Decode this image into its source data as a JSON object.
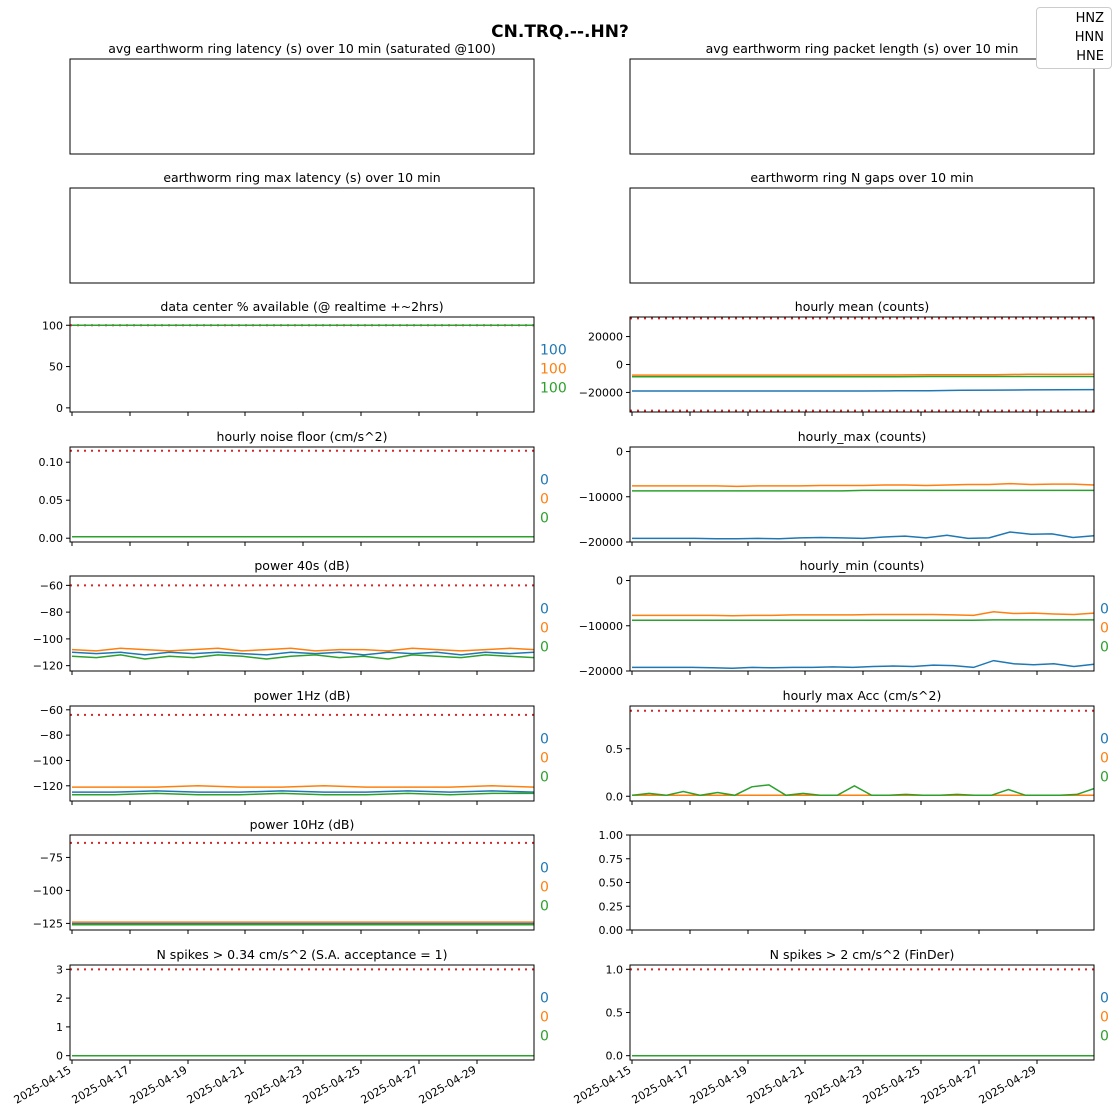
{
  "suptitle": "CN.TRQ.--.HN?",
  "legend": {
    "placement": "top-right",
    "entries": [
      "HNZ",
      "HNN",
      "HNE"
    ]
  },
  "colors": {
    "HNZ": "#1f77b4",
    "HNN": "#ff7f0e",
    "HNE": "#2ca02c",
    "threshold": "#d62728"
  },
  "x_tick_labels": [
    "2025-04-15",
    "2025-04-17",
    "2025-04-19",
    "2025-04-21",
    "2025-04-23",
    "2025-04-25",
    "2025-04-27",
    "2025-04-29"
  ],
  "chart_data": [
    {
      "id": "avg_latency",
      "type": "line",
      "title": "avg earthworm ring latency (s)   over 10 min (saturated @100)",
      "series": [],
      "side_labels": [],
      "grid": false
    },
    {
      "id": "avg_packet_len",
      "type": "line",
      "title": "avg earthworm ring packet length (s)   over 10 min",
      "series": [],
      "side_labels": [],
      "grid": false
    },
    {
      "id": "max_latency",
      "type": "line",
      "title": "earthworm ring max latency (s)   over 10 min",
      "series": [],
      "side_labels": [],
      "grid": false
    },
    {
      "id": "n_gaps",
      "type": "line",
      "title": "earthworm ring N gaps   over 10 min",
      "series": [],
      "side_labels": [],
      "grid": false
    },
    {
      "id": "availability",
      "type": "line",
      "title": "data center % available (@ realtime +~2hrs)",
      "ylim": [
        -5,
        110
      ],
      "yticks": [
        0,
        50,
        100
      ],
      "ytick_labels": [
        "0",
        "50",
        "100"
      ],
      "threshold": 100,
      "series": [
        {
          "channel": "HNZ",
          "values": [
            100,
            100,
            100
          ]
        },
        {
          "channel": "HNN",
          "values": [
            100,
            100,
            100
          ]
        },
        {
          "channel": "HNE",
          "values": [
            100,
            100,
            100
          ]
        }
      ],
      "side_labels": [
        "100",
        "100",
        "100"
      ]
    },
    {
      "id": "hourly_mean",
      "type": "line",
      "title": "hourly mean (counts)",
      "ylim": [
        -34000,
        34000
      ],
      "yticks": [
        -20000,
        0,
        20000
      ],
      "ytick_labels": [
        "−20000",
        "0",
        "20000"
      ],
      "threshold": [
        -33000,
        33000
      ],
      "series": [
        {
          "channel": "HNZ",
          "values": [
            -19000,
            -19000,
            -19000,
            -19000,
            -19000,
            -19000,
            -19000,
            -19000,
            -18800,
            -18800,
            -18500,
            -18300,
            -18200,
            -18100,
            -18000
          ]
        },
        {
          "channel": "HNN",
          "values": [
            -7600,
            -7600,
            -7600,
            -7600,
            -7600,
            -7600,
            -7600,
            -7500,
            -7500,
            -7400,
            -7400,
            -7300,
            -7000,
            -7100,
            -7000
          ]
        },
        {
          "channel": "HNE",
          "values": [
            -8700,
            -8700,
            -8700,
            -8700,
            -8700,
            -8700,
            -8700,
            -8700,
            -8700,
            -8600,
            -8600,
            -8600,
            -8600,
            -8600,
            -8600
          ]
        }
      ],
      "side_labels": []
    },
    {
      "id": "noise_floor",
      "type": "line",
      "title": "hourly noise floor (cm/s^2)",
      "ylim": [
        -0.005,
        0.12
      ],
      "yticks": [
        0,
        0.05,
        0.1
      ],
      "ytick_labels": [
        "0.00",
        "0.05",
        "0.10"
      ],
      "threshold": 0.115,
      "series": [
        {
          "channel": "HNZ",
          "values": [
            0.002,
            0.002,
            0.002,
            0.002,
            0.002
          ]
        },
        {
          "channel": "HNN",
          "values": [
            0.002,
            0.002,
            0.002,
            0.002,
            0.002
          ]
        },
        {
          "channel": "HNE",
          "values": [
            0.002,
            0.002,
            0.002,
            0.002,
            0.002
          ]
        }
      ],
      "side_labels": [
        "0",
        "0",
        "0"
      ]
    },
    {
      "id": "hourly_max",
      "type": "line",
      "title": "hourly_max (counts)",
      "ylim": [
        -20000,
        1000
      ],
      "yticks": [
        -20000,
        -10000,
        0
      ],
      "ytick_labels": [
        "−20000",
        "−10000",
        "0"
      ],
      "threshold": null,
      "series": [
        {
          "channel": "HNZ",
          "values": [
            -19200,
            -19200,
            -19200,
            -19200,
            -19300,
            -19300,
            -19200,
            -19300,
            -19100,
            -19000,
            -19100,
            -19200,
            -18900,
            -18700,
            -19100,
            -18500,
            -19200,
            -19100,
            -17800,
            -18300,
            -18200,
            -19000,
            -18600
          ]
        },
        {
          "channel": "HNN",
          "values": [
            -7600,
            -7600,
            -7600,
            -7600,
            -7600,
            -7700,
            -7600,
            -7600,
            -7600,
            -7500,
            -7500,
            -7500,
            -7400,
            -7400,
            -7500,
            -7400,
            -7300,
            -7300,
            -7100,
            -7300,
            -7200,
            -7200,
            -7400
          ]
        },
        {
          "channel": "HNE",
          "values": [
            -8700,
            -8700,
            -8700,
            -8700,
            -8700,
            -8700,
            -8700,
            -8700,
            -8700,
            -8700,
            -8700,
            -8600,
            -8600,
            -8600,
            -8600,
            -8600,
            -8600,
            -8600,
            -8600,
            -8600,
            -8600,
            -8600,
            -8600
          ]
        }
      ],
      "side_labels": []
    },
    {
      "id": "power40",
      "type": "line",
      "title": "power 40s (dB)",
      "ylim": [
        -124,
        -53
      ],
      "yticks": [
        -120,
        -100,
        -80,
        -60
      ],
      "ytick_labels": [
        "−120",
        "−100",
        "−80",
        "−60"
      ],
      "threshold": -60,
      "series": [
        {
          "channel": "HNZ",
          "values": [
            -110,
            -111,
            -110,
            -112,
            -110,
            -111,
            -110,
            -111,
            -112,
            -110,
            -111,
            -110,
            -112,
            -110,
            -111,
            -110,
            -112,
            -110,
            -111,
            -110
          ]
        },
        {
          "channel": "HNN",
          "values": [
            -108,
            -109,
            -107,
            -108,
            -109,
            -108,
            -107,
            -109,
            -108,
            -107,
            -109,
            -108,
            -108,
            -109,
            -107,
            -108,
            -109,
            -108,
            -107,
            -108
          ]
        },
        {
          "channel": "HNE",
          "values": [
            -113,
            -114,
            -112,
            -115,
            -113,
            -114,
            -112,
            -113,
            -115,
            -113,
            -112,
            -114,
            -113,
            -115,
            -112,
            -113,
            -114,
            -112,
            -113,
            -114
          ]
        }
      ],
      "side_labels": [
        "0",
        "0",
        "0"
      ]
    },
    {
      "id": "hourly_min",
      "type": "line",
      "title": "hourly_min (counts)",
      "ylim": [
        -20000,
        1000
      ],
      "yticks": [
        -20000,
        -10000,
        0
      ],
      "ytick_labels": [
        "−20000",
        "−10000",
        "0"
      ],
      "threshold": null,
      "series": [
        {
          "channel": "HNZ",
          "values": [
            -19200,
            -19200,
            -19200,
            -19200,
            -19300,
            -19400,
            -19200,
            -19300,
            -19200,
            -19200,
            -19100,
            -19200,
            -19000,
            -18900,
            -19000,
            -18700,
            -18800,
            -19200,
            -17700,
            -18400,
            -18600,
            -18400,
            -19000,
            -18500
          ]
        },
        {
          "channel": "HNN",
          "values": [
            -7700,
            -7700,
            -7700,
            -7700,
            -7700,
            -7800,
            -7700,
            -7700,
            -7600,
            -7600,
            -7600,
            -7600,
            -7500,
            -7500,
            -7500,
            -7500,
            -7600,
            -7700,
            -6900,
            -7300,
            -7200,
            -7400,
            -7500,
            -7200
          ]
        },
        {
          "channel": "HNE",
          "values": [
            -8800,
            -8800,
            -8800,
            -8800,
            -8800,
            -8800,
            -8800,
            -8800,
            -8800,
            -8800,
            -8800,
            -8800,
            -8800,
            -8800,
            -8800,
            -8800,
            -8800,
            -8800,
            -8700,
            -8700,
            -8700,
            -8700,
            -8700,
            -8700
          ]
        }
      ],
      "side_labels": [
        "0",
        "0",
        "0"
      ]
    },
    {
      "id": "power1",
      "type": "line",
      "title": "power 1Hz (dB)",
      "ylim": [
        -132,
        -57
      ],
      "yticks": [
        -120,
        -100,
        -80,
        -60
      ],
      "ytick_labels": [
        "−120",
        "−100",
        "−80",
        "−60"
      ],
      "threshold": -64,
      "series": [
        {
          "channel": "HNZ",
          "values": [
            -125,
            -125,
            -124,
            -125,
            -125,
            -124,
            -125,
            -125,
            -124,
            -125,
            -124,
            -125
          ]
        },
        {
          "channel": "HNN",
          "values": [
            -121,
            -121,
            -121,
            -120,
            -121,
            -121,
            -120,
            -121,
            -121,
            -121,
            -120,
            -121
          ]
        },
        {
          "channel": "HNE",
          "values": [
            -127,
            -127,
            -126,
            -127,
            -127,
            -126,
            -127,
            -127,
            -126,
            -127,
            -126,
            -126
          ]
        }
      ],
      "side_labels": [
        "0",
        "0",
        "0"
      ]
    },
    {
      "id": "max_acc",
      "type": "line",
      "title": "hourly max Acc (cm/s^2)",
      "ylim": [
        -0.05,
        0.95
      ],
      "yticks": [
        0,
        0.5
      ],
      "ytick_labels": [
        "0.0",
        "0.5"
      ],
      "threshold": 0.9,
      "series": [
        {
          "channel": "HNZ",
          "values": [
            0.01,
            0.01,
            0.01,
            0.01,
            0.01,
            0.01
          ]
        },
        {
          "channel": "HNN",
          "values": [
            0.01,
            0.01,
            0.01,
            0.01,
            0.01,
            0.01
          ]
        },
        {
          "channel": "HNE",
          "values": [
            0.01,
            0.03,
            0.01,
            0.05,
            0.01,
            0.04,
            0.01,
            0.1,
            0.12,
            0.01,
            0.03,
            0.01,
            0.01,
            0.11,
            0.01,
            0.01,
            0.02,
            0.01,
            0.01,
            0.02,
            0.01,
            0.01,
            0.07,
            0.01,
            0.01,
            0.01,
            0.02,
            0.08
          ]
        }
      ],
      "side_labels": [
        "0",
        "0",
        "0"
      ]
    },
    {
      "id": "power10",
      "type": "line",
      "title": "power 10Hz (dB)",
      "ylim": [
        -130,
        -58
      ],
      "yticks": [
        -125,
        -100,
        -75
      ],
      "ytick_labels": [
        "−125",
        "−100",
        "−75"
      ],
      "threshold": -64,
      "series": [
        {
          "channel": "HNZ",
          "values": [
            -125,
            -125,
            -125,
            -125,
            -125,
            -125,
            -125,
            -125,
            -125,
            -125,
            -125,
            -125
          ]
        },
        {
          "channel": "HNN",
          "values": [
            -124,
            -124,
            -124,
            -124,
            -124,
            -124,
            -124,
            -124,
            -124,
            -124,
            -124,
            -124
          ]
        },
        {
          "channel": "HNE",
          "values": [
            -126,
            -126,
            -126,
            -126,
            -126,
            -126,
            -126,
            -126,
            -126,
            -126,
            -126,
            -126
          ]
        }
      ],
      "side_labels": [
        "0",
        "0",
        "0"
      ]
    },
    {
      "id": "empty_right",
      "type": "line",
      "title": "",
      "ylim": [
        0,
        1
      ],
      "yticks": [
        0,
        0.25,
        0.5,
        0.75,
        1.0
      ],
      "ytick_labels": [
        "0.00",
        "0.25",
        "0.50",
        "0.75",
        "1.00"
      ],
      "threshold": null,
      "series": [],
      "side_labels": []
    },
    {
      "id": "spikes034",
      "type": "line",
      "title": "N spikes > 0.34 cm/s^2 (S.A. acceptance = 1)",
      "ylim": [
        -0.15,
        3.15
      ],
      "yticks": [
        0,
        1,
        2,
        3
      ],
      "ytick_labels": [
        "0",
        "1",
        "2",
        "3"
      ],
      "threshold": 3,
      "series": [
        {
          "channel": "HNZ",
          "values": [
            0,
            0
          ]
        },
        {
          "channel": "HNN",
          "values": [
            0,
            0
          ]
        },
        {
          "channel": "HNE",
          "values": [
            0,
            0
          ]
        }
      ],
      "side_labels": [
        "0",
        "0",
        "0"
      ]
    },
    {
      "id": "spikes2",
      "type": "line",
      "title": "N spikes > 2 cm/s^2 (FinDer)",
      "ylim": [
        -0.05,
        1.05
      ],
      "yticks": [
        0,
        0.5,
        1.0
      ],
      "ytick_labels": [
        "0.0",
        "0.5",
        "1.0"
      ],
      "threshold": 1,
      "series": [
        {
          "channel": "HNZ",
          "values": [
            0,
            0
          ]
        },
        {
          "channel": "HNN",
          "values": [
            0,
            0
          ]
        },
        {
          "channel": "HNE",
          "values": [
            0,
            0
          ]
        }
      ],
      "side_labels": [
        "0",
        "0",
        "0"
      ]
    }
  ]
}
